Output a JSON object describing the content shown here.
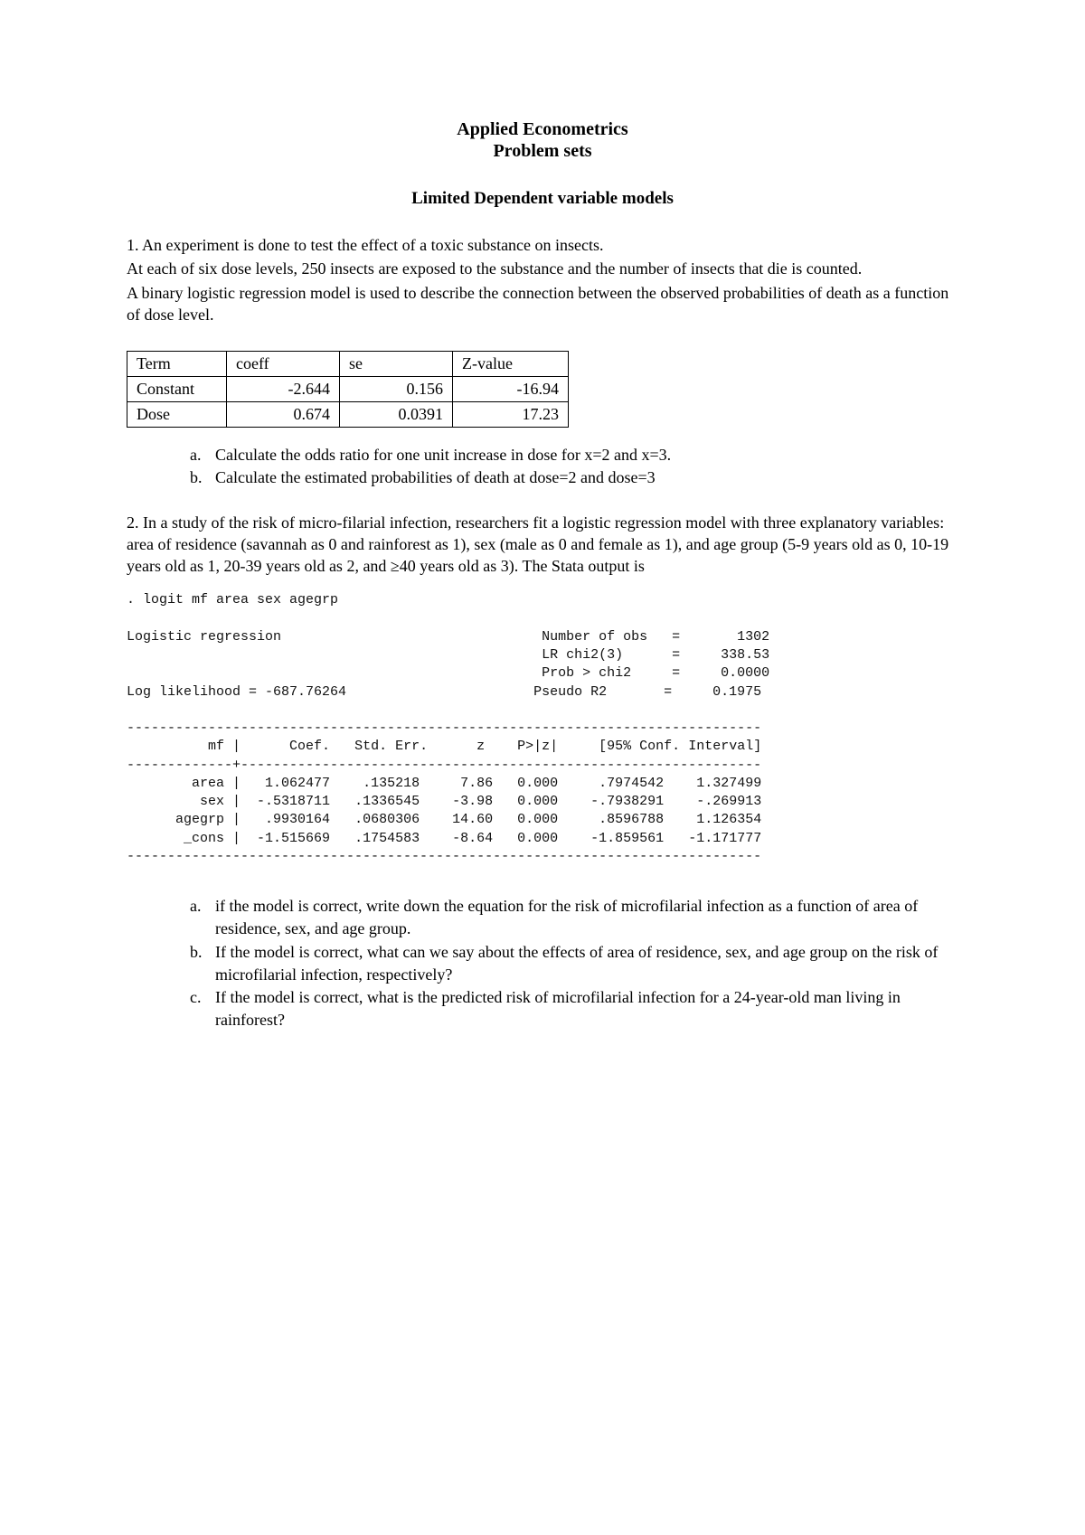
{
  "header": {
    "title": "Applied Econometrics",
    "subtitle": "Problem sets",
    "section": "Limited Dependent variable models"
  },
  "q1": {
    "intro1": "1. An experiment is done to test the effect of a toxic substance on insects.",
    "intro2": "At each of six dose levels, 250 insects are exposed to the substance and the number of insects that die is counted.",
    "intro3": "A binary logistic regression model is used to describe the connection between the observed probabilities of death as a function of dose level.",
    "table": {
      "columns": [
        "Term",
        "coeff",
        "se",
        "Z-value"
      ],
      "rows": [
        [
          "Constant",
          "-2.644",
          "0.156",
          "-16.94"
        ],
        [
          "Dose",
          "0.674",
          "0.0391",
          "17.23"
        ]
      ]
    },
    "parts": {
      "a": "Calculate the odds ratio for one unit increase in dose for x=2 and x=3.",
      "b": "Calculate the estimated probabilities of death at dose=2 and dose=3"
    }
  },
  "q2": {
    "intro": "2. In a study of the risk of micro-filarial infection, researchers fit a logistic regression model with three explanatory variables: area of residence (savannah as 0 and rainforest as 1), sex (male as 0 and female as 1), and age group (5-9 years old as 0, 10-19 years old as 1, 20-39 years old as 2, and ≥40 years old as 3). The Stata output is",
    "stata": {
      "cmd": ". logit mf area sex agegrp",
      "header_left": "Logistic regression",
      "loglik": "Log likelihood = -687.76264",
      "stats": {
        "nobs_label": "Number of obs",
        "nobs": "1302",
        "lrchi2_label": "LR chi2(3)",
        "lrchi2": "338.53",
        "probchi2_label": "Prob > chi2",
        "probchi2": "0.0000",
        "pseudor2_label": "Pseudo R2",
        "pseudor2": "0.1975"
      },
      "cols": {
        "depvar": "mf",
        "coef": "Coef.",
        "se": "Std. Err.",
        "z": "z",
        "pz": "P>|z|",
        "ci": "[95% Conf. Interval]"
      },
      "rows": [
        {
          "var": "area",
          "coef": "1.062477",
          "se": ".135218",
          "z": "7.86",
          "pz": "0.000",
          "lo": ".7974542",
          "hi": "1.327499"
        },
        {
          "var": "sex",
          "coef": "-.5318711",
          "se": ".1336545",
          "z": "-3.98",
          "pz": "0.000",
          "lo": "-.7938291",
          "hi": "-.269913"
        },
        {
          "var": "agegrp",
          "coef": ".9930164",
          "se": ".0680306",
          "z": "14.60",
          "pz": "0.000",
          "lo": ".8596788",
          "hi": "1.126354"
        },
        {
          "var": "_cons",
          "coef": "-1.515669",
          "se": ".1754583",
          "z": "-8.64",
          "pz": "0.000",
          "lo": "-1.859561",
          "hi": "-1.171777"
        }
      ]
    },
    "parts": {
      "a": "if the model is correct, write down the equation for the risk of microfilarial infection as a function of area of residence, sex, and age group.",
      "b": "If the model is correct, what can we say about the effects of area of residence, sex, and age group on the risk of microfilarial infection, respectively?",
      "c": "If the model is correct, what is the predicted risk of microfilarial infection for a 24-year-old man living in rainforest?"
    }
  }
}
